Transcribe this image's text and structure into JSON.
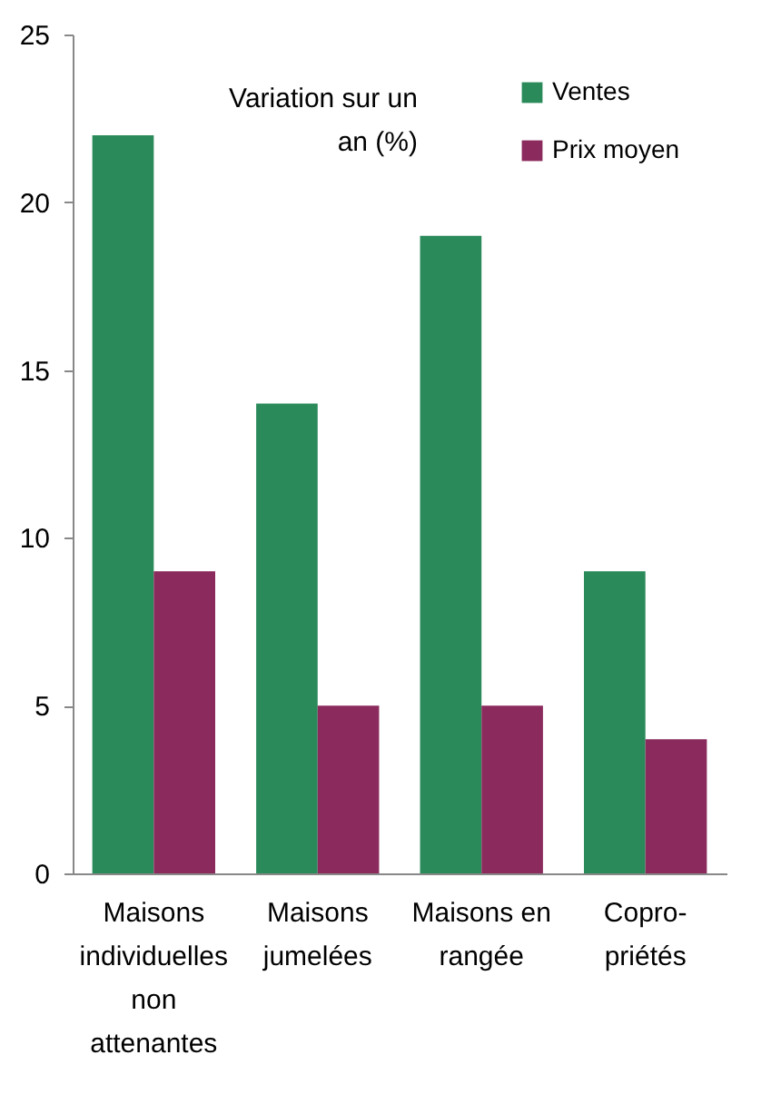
{
  "chart_data": {
    "type": "bar",
    "ylabel": "Variation sur un an (%)",
    "categories": [
      "Maisons individuelles non attenantes",
      "Maisons jumelées",
      "Maisons en rangée",
      "Copro-priétés"
    ],
    "series": [
      {
        "name": "Ventes",
        "color": "#2a8a5a",
        "values": [
          22,
          14,
          19,
          9
        ]
      },
      {
        "name": "Prix moyen",
        "color": "#8b2a5c",
        "values": [
          9,
          5,
          5,
          4
        ]
      }
    ],
    "ylim": [
      0,
      25
    ],
    "yticks": [
      0,
      5,
      10,
      15,
      20,
      25
    ],
    "grid": false,
    "legend": "top right"
  }
}
